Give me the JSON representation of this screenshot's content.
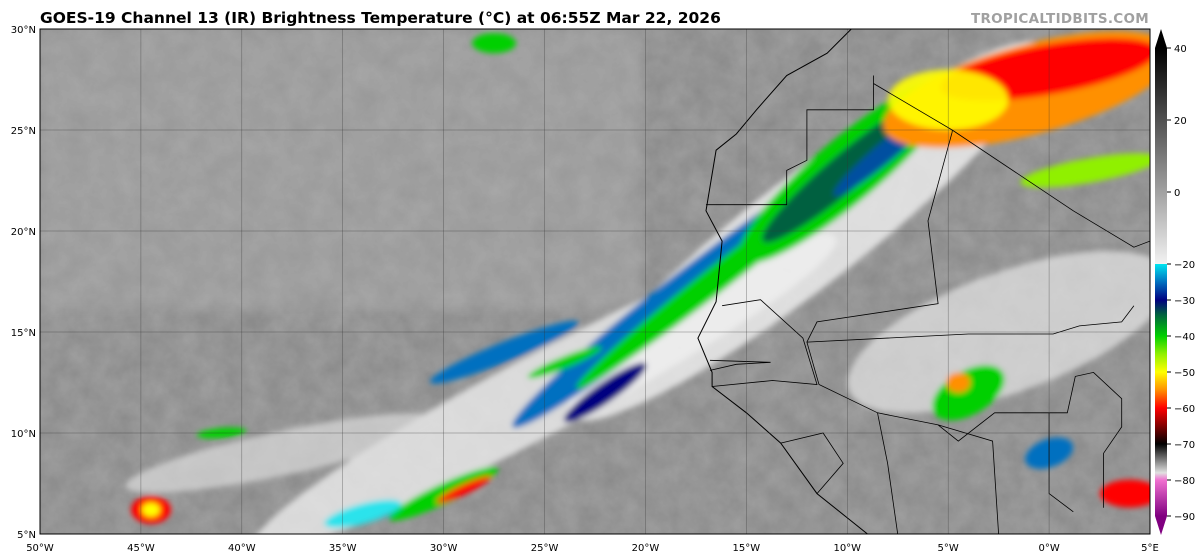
{
  "header": {
    "title": "GOES-19 Channel 13 (IR) Brightness Temperature (°C) at 06:55Z Mar 22, 2026",
    "watermark": "TROPICALTIDBITS.COM"
  },
  "map": {
    "product": "infrared brightness temperature satellite image",
    "extent": {
      "lon": [
        -50,
        5
      ],
      "lat": [
        5,
        30
      ]
    },
    "lon_labels": [
      "50°W",
      "45°W",
      "40°W",
      "35°W",
      "30°W",
      "25°W",
      "20°W",
      "15°W",
      "10°W",
      "5°W",
      "0°W",
      "5°E"
    ],
    "lat_labels": [
      "5°N",
      "10°N",
      "15°N",
      "20°N",
      "25°N",
      "30°N"
    ],
    "grid": true
  },
  "colorbar": {
    "range": [
      -90,
      40
    ],
    "tick_labels": [
      "40",
      "20",
      "0",
      "−20",
      "−30",
      "−40",
      "−50",
      "−60",
      "−70",
      "−80",
      "−90"
    ],
    "stops": [
      {
        "t": 40,
        "color": "#000000"
      },
      {
        "t": -20,
        "color": "#f2f2f2"
      },
      {
        "t": -20.01,
        "color": "#00e5f0"
      },
      {
        "t": -25,
        "color": "#0070c0"
      },
      {
        "t": -30,
        "color": "#000080"
      },
      {
        "t": -34,
        "color": "#006040"
      },
      {
        "t": -40,
        "color": "#00d000"
      },
      {
        "t": -45,
        "color": "#90f000"
      },
      {
        "t": -50,
        "color": "#ffff00"
      },
      {
        "t": -55,
        "color": "#ff9000"
      },
      {
        "t": -60,
        "color": "#ff0000"
      },
      {
        "t": -65,
        "color": "#800000"
      },
      {
        "t": -70,
        "color": "#000000"
      },
      {
        "t": -78,
        "color": "#e0e0e0"
      },
      {
        "t": -80.01,
        "color": "#f070d0"
      },
      {
        "t": -90,
        "color": "#800080"
      }
    ]
  }
}
